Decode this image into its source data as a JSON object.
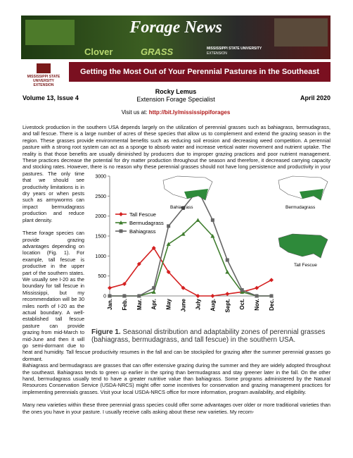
{
  "header": {
    "banner_title": "Forage News",
    "banner_left": "Clover",
    "banner_right": "GRASS",
    "banner_logo": "MISSISSIPPI STATE UNIVERSITY",
    "banner_logo_sub": "EXTENSION"
  },
  "logo": {
    "line1": "MISSISSIPPI STATE UNIVERSITY",
    "line2": "EXTENSION"
  },
  "title_bar": "Getting the Most Out of Your Perennial Pastures in the Southeast",
  "info": {
    "volume": "Volume 13, Issue 4",
    "author": "Rocky Lemus",
    "role": "Extension Forage Specialist",
    "date": "April 2020"
  },
  "visit": {
    "label": "Visit us at:",
    "url": "http://bit.ly/mississippiforages"
  },
  "paragraphs": [
    "Livestock production in the southern USA depends largely on the utilization of perennial grasses such as bahiagrass, bermudagrass, and tall fescue. There is a large number of acres of these species that allow us to complement and extend the grazing season in the region. These grasses provide environmental benefits such as reducing soil erosion and decreasing weed competition. A perennial pasture with a strong root system can act as a sponge to absorb water and increase vertical water movement and nutrient uptake. The reality is that those benefits are usually diminished by producers due to improper grazing practices and poor nutrient management. These practices decrease the potential for dry matter production throughout the season and therefore, it decreased carrying capacity and stocking rates. However, there is no reason why these perennial grasses should not have long persistence and productivity in your pastures. The only time that we should see productivity limitations is in dry years or when pests such as armyworms can impact bermudagrass production and reduce plant density.",
    "These forage species can provide grazing advantages depending on location (Fig. 1). For example, tall fescue is productive in the upper part of the southern states. We usually see I-20 as the boundary for tall fescue in Mississippi, but my recommendation will be 30 miles north of I-20 as the actual boundary. A well-established tall fescue pasture can provide grazing from mid-March to mid-June and then it will go semi-dormant due to heat and humidity. Tall fescue productivity resumes in the fall and can be stockpiled for grazing after the summer perennial grasses go dormant.",
    "Bahiagrass and bermudagrass are grasses that can offer extensive grazing during the summer and they are widely adopted throughout the southeast. Bahiagrass tends to green up earlier in the spring than bermudagrass and stay greener later in the fall. On the other hand, bermudagrass usually tend to have a greater nutritive value than bahiagrass. Some programs administered by the Natural Resources Conservation Service (USDA-NRCS) might offer some incentives for conservation and grazing management practices for implementing perennials grasses. Visit your local USDA-NRCS office for more information, program availability, and eligibility.",
    "Many new varieties within these three perennial grass species could offer some advantages over older or more traditional varieties than the ones you have in your pasture. I usually receive calls asking about these new varieties. My recom-"
  ],
  "figure": {
    "label": "Figure 1.",
    "caption": "Seasonal distribution and adaptability zones of perennial grasses (bahiagrass, bermudagrass, and tall fescue) in the southern USA.",
    "maps": [
      "Bahiagrass",
      "Bermudagrass",
      "Tall Fescue"
    ]
  },
  "chart_data": {
    "type": "line",
    "categories": [
      "Jan.",
      "Feb.",
      "Mar.",
      "Apr.",
      "May",
      "June",
      "July",
      "Aug.",
      "Sept.",
      "Oct.",
      "Nov.",
      "Dec."
    ],
    "series": [
      {
        "name": "Tall Fescue",
        "color": "#d42020",
        "marker": "diamond",
        "values": [
          200,
          300,
          800,
          1200,
          600,
          200,
          0,
          0,
          50,
          100,
          200,
          400
        ]
      },
      {
        "name": "Bermudagrass",
        "color": "#3f7d2e",
        "marker": "triangle",
        "values": [
          0,
          0,
          0,
          100,
          1300,
          1550,
          1900,
          1500,
          600,
          100,
          0,
          0
        ]
      },
      {
        "name": "Bahiagrass",
        "color": "#666666",
        "marker": "square",
        "values": [
          0,
          0,
          0,
          200,
          1750,
          2200,
          2650,
          1900,
          900,
          150,
          0,
          0
        ]
      }
    ],
    "ylim": [
      0,
      3000
    ],
    "yticks": [
      0,
      500,
      1000,
      1500,
      2000,
      2500,
      3000
    ],
    "grid": false,
    "legend": "left"
  }
}
